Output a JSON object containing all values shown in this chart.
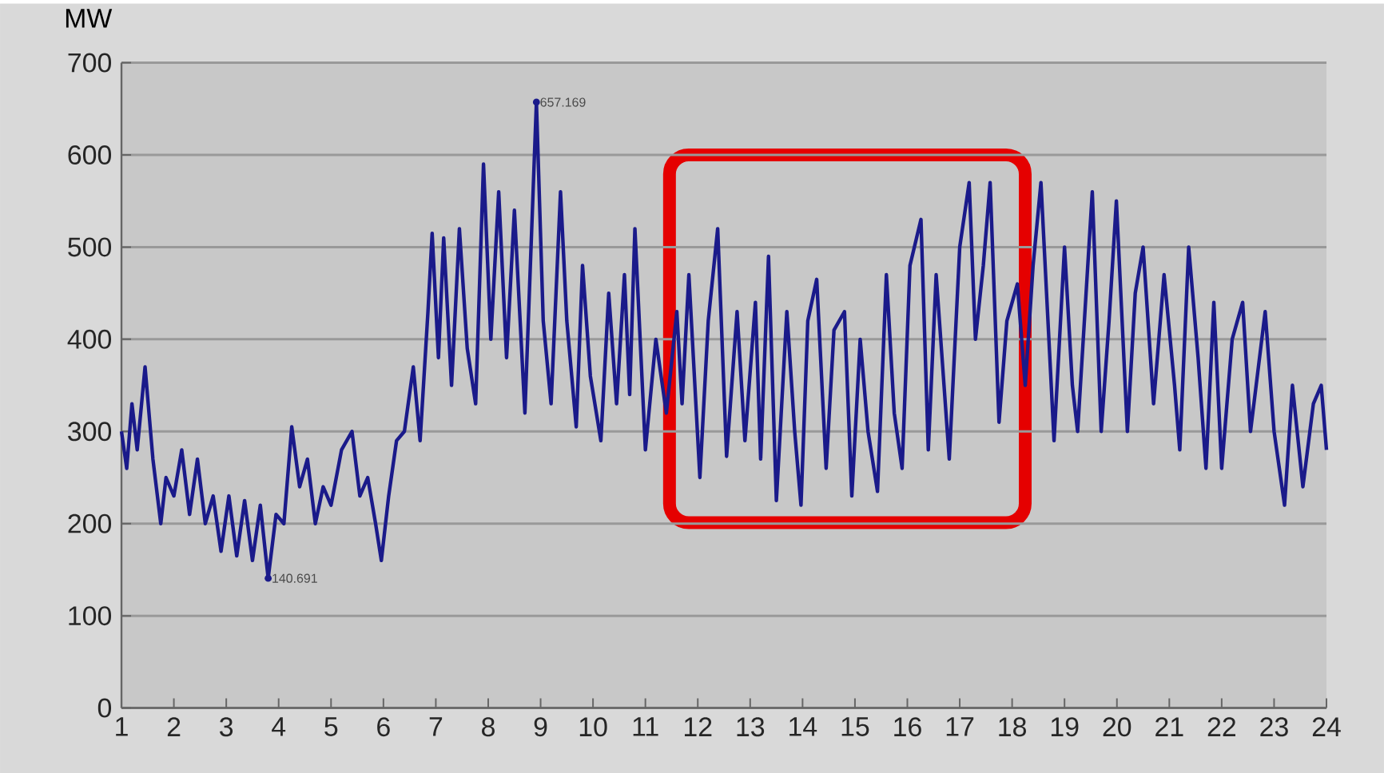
{
  "chart_data": {
    "type": "line",
    "ylabel": "MW",
    "x": [
      1.0,
      1.1,
      1.2,
      1.3,
      1.45,
      1.6,
      1.75,
      1.85,
      2.0,
      2.15,
      2.3,
      2.45,
      2.6,
      2.75,
      2.9,
      3.05,
      3.2,
      3.35,
      3.5,
      3.65,
      3.8,
      3.95,
      4.1,
      4.25,
      4.4,
      4.55,
      4.7,
      4.85,
      5.0,
      5.2,
      5.4,
      5.55,
      5.7,
      5.85,
      5.96,
      6.1,
      6.25,
      6.4,
      6.57,
      6.7,
      6.85,
      6.93,
      7.05,
      7.15,
      7.3,
      7.45,
      7.6,
      7.76,
      7.91,
      8.05,
      8.2,
      8.35,
      8.5,
      8.7,
      8.92,
      9.05,
      9.2,
      9.38,
      9.5,
      9.68,
      9.8,
      9.95,
      10.15,
      10.3,
      10.45,
      10.6,
      10.7,
      10.8,
      11.0,
      11.2,
      11.4,
      11.6,
      11.7,
      11.83,
      12.04,
      12.2,
      12.38,
      12.55,
      12.75,
      12.9,
      13.1,
      13.2,
      13.35,
      13.5,
      13.7,
      13.85,
      13.97,
      14.1,
      14.27,
      14.45,
      14.6,
      14.8,
      14.94,
      15.1,
      15.25,
      15.43,
      15.6,
      15.75,
      15.9,
      16.05,
      16.26,
      16.4,
      16.55,
      16.7,
      16.8,
      17.0,
      17.18,
      17.3,
      17.45,
      17.58,
      17.75,
      17.9,
      18.1,
      18.25,
      18.4,
      18.55,
      18.8,
      19.0,
      19.15,
      19.25,
      19.53,
      19.7,
      19.85,
      19.99,
      20.2,
      20.35,
      20.5,
      20.7,
      20.9,
      21.1,
      21.2,
      21.37,
      21.55,
      21.7,
      21.85,
      22.0,
      22.2,
      22.4,
      22.55,
      22.83,
      23.0,
      23.2,
      23.35,
      23.55,
      23.75,
      23.9,
      24.0
    ],
    "series": [
      {
        "color": "#1a1a8a",
        "values": [
          300,
          260,
          330,
          280,
          370,
          270,
          200,
          250,
          230,
          280,
          210,
          270,
          200,
          230,
          170,
          230,
          165,
          225,
          160,
          220,
          140.691,
          210,
          200,
          305,
          240,
          270,
          200,
          240,
          220,
          280,
          300,
          230,
          250,
          200,
          160,
          230,
          290,
          300,
          370,
          290,
          430,
          515,
          380,
          510,
          350,
          520,
          390,
          330,
          590,
          400,
          560,
          380,
          540,
          320,
          657.169,
          420,
          330,
          560,
          420,
          305,
          480,
          360,
          290,
          450,
          330,
          470,
          340,
          520,
          280,
          400,
          320,
          430,
          330,
          470,
          250,
          420,
          520,
          273,
          430,
          290,
          440,
          270,
          490,
          225,
          430,
          300,
          220,
          420,
          465,
          260,
          410,
          430,
          230,
          400,
          300,
          235,
          470,
          320,
          260,
          480,
          530,
          280,
          470,
          350,
          270,
          500,
          570,
          400,
          480,
          570,
          310,
          420,
          460,
          350,
          480,
          570,
          290,
          500,
          350,
          300,
          560,
          300,
          420,
          550,
          300,
          450,
          500,
          330,
          470,
          350,
          280,
          500,
          380,
          260,
          440,
          260,
          400,
          440,
          300,
          430,
          300,
          220,
          350,
          240,
          330,
          350,
          280
        ]
      }
    ],
    "xlim": [
      1,
      24
    ],
    "ylim": [
      0,
      700
    ],
    "xticks": [
      1,
      2,
      3,
      4,
      5,
      6,
      7,
      8,
      9,
      10,
      11,
      12,
      13,
      14,
      15,
      16,
      17,
      18,
      19,
      20,
      21,
      22,
      23,
      24
    ],
    "yticks": [
      0,
      100,
      200,
      300,
      400,
      500,
      600,
      700
    ],
    "grid": "y",
    "annotations": [
      {
        "text": "657.169",
        "x": 8.92,
        "y": 657.169
      },
      {
        "text": "140.691",
        "x": 3.8,
        "y": 140.691
      }
    ]
  }
}
